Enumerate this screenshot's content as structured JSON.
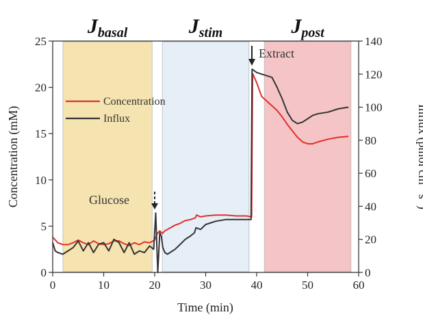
{
  "chart_data": {
    "type": "line",
    "title": "",
    "xlabel": "Time (min)",
    "ylabel": "Concentration (mM)",
    "y2label_main": "Influx (pmol cm",
    "y2label_sup1": "-2",
    "y2label_mid": " s",
    "y2label_sup2": "-1",
    "y2label_end": ")",
    "xlim": [
      0,
      60
    ],
    "ylim": [
      0,
      25
    ],
    "y2lim": [
      0,
      140
    ],
    "xticks": [
      0,
      10,
      20,
      30,
      40,
      50,
      60
    ],
    "yticks": [
      0,
      5,
      10,
      15,
      20,
      25
    ],
    "y2ticks": [
      0,
      20,
      40,
      60,
      80,
      100,
      120,
      140
    ],
    "grid": false,
    "legend_position": "upper-left",
    "phases": [
      {
        "main": "J",
        "sub": "basal",
        "start": 2,
        "end": 19.5,
        "color": "#f5e3b0"
      },
      {
        "main": "J",
        "sub": "stim",
        "start": 21.5,
        "end": 38.5,
        "color": "#e6eef8"
      },
      {
        "main": "J",
        "sub": "post",
        "start": 41.5,
        "end": 58.5,
        "color": "#f5c4c6"
      }
    ],
    "annotations": [
      {
        "text": "Glucose",
        "x": 20,
        "y": 8
      },
      {
        "text": "Extract",
        "x": 39.5,
        "y": 23.5
      }
    ],
    "series": [
      {
        "name": "Concentration",
        "axis": "left",
        "color": "#e0302a",
        "x": [
          0,
          1,
          2,
          3,
          4,
          5,
          6,
          7,
          8,
          9,
          10,
          11,
          12,
          13,
          14,
          15,
          16,
          17,
          18,
          19,
          20,
          20.5,
          21,
          21.5,
          22,
          23,
          24,
          25,
          26,
          27,
          28,
          28.2,
          29,
          30,
          32,
          34,
          36,
          38,
          39,
          39.2,
          40,
          41,
          42,
          43,
          44,
          45,
          46,
          47,
          48,
          49,
          50,
          51,
          52,
          54,
          56,
          58
        ],
        "y": [
          3.8,
          3.2,
          3.0,
          3.0,
          3.2,
          3.5,
          3.2,
          3.0,
          3.4,
          3.1,
          3.0,
          3.1,
          3.4,
          3.4,
          3.1,
          2.9,
          3.2,
          3.0,
          3.3,
          3.2,
          3.5,
          4.2,
          4.5,
          4.2,
          4.5,
          4.8,
          5.1,
          5.3,
          5.6,
          5.7,
          5.9,
          6.2,
          6.0,
          6.1,
          6.2,
          6.2,
          6.1,
          6.1,
          6.0,
          21.5,
          20.5,
          19.0,
          18.5,
          18.0,
          17.5,
          16.8,
          16.0,
          15.3,
          14.6,
          14.1,
          13.9,
          13.9,
          14.1,
          14.4,
          14.6,
          14.7
        ]
      },
      {
        "name": "Influx",
        "axis": "right",
        "color": "#333333",
        "x": [
          0,
          0.5,
          1,
          2,
          3,
          4,
          5,
          6,
          7,
          8,
          9,
          10,
          11,
          12,
          13,
          14,
          15,
          16,
          17,
          18,
          19,
          19.8,
          20.2,
          20.6,
          21,
          21.3,
          21.6,
          22,
          22.5,
          23,
          24,
          25,
          26,
          27,
          27.8,
          28.1,
          29,
          30,
          32,
          34,
          36,
          38,
          38.9,
          39.1,
          40,
          41,
          42,
          43,
          44,
          45,
          46,
          47,
          48,
          49,
          50,
          51,
          52,
          54,
          56,
          58
        ],
        "y": [
          18,
          13,
          12,
          11,
          13,
          15,
          19,
          13,
          18,
          12,
          17,
          18,
          13,
          20,
          18,
          12,
          18,
          11,
          13,
          12,
          16,
          14,
          36,
          0,
          24,
          22,
          15,
          12,
          11,
          12,
          14,
          17,
          20,
          22,
          24,
          27,
          26,
          29,
          31,
          32,
          32,
          32,
          32,
          123,
          121,
          120,
          119,
          118,
          112,
          105,
          97,
          92,
          90,
          91,
          93,
          95,
          96,
          97,
          99,
          100
        ]
      }
    ]
  }
}
